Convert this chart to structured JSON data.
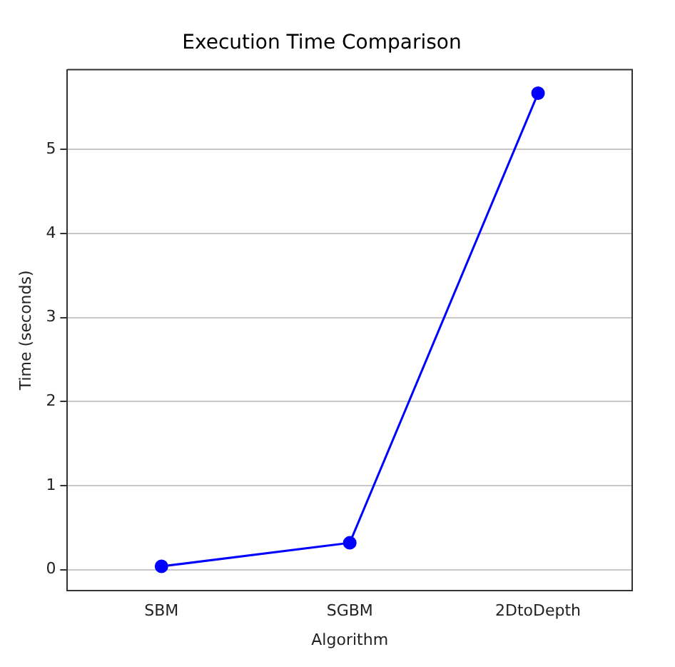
{
  "chart_data": {
    "type": "line",
    "title": "Execution Time Comparison",
    "xlabel": "Algorithm",
    "ylabel": "Time (seconds)",
    "categories": [
      "SBM",
      "SGBM",
      "2DtoDepth"
    ],
    "series": [
      {
        "color": "#0000ff",
        "values": [
          0.04,
          0.32,
          5.67
        ]
      }
    ],
    "ylim": [
      -0.25,
      5.95
    ],
    "yticks": [
      0,
      1,
      2,
      3,
      4,
      5
    ],
    "grid": "y",
    "legend": false,
    "marker": "circle",
    "line_style": "solid"
  }
}
